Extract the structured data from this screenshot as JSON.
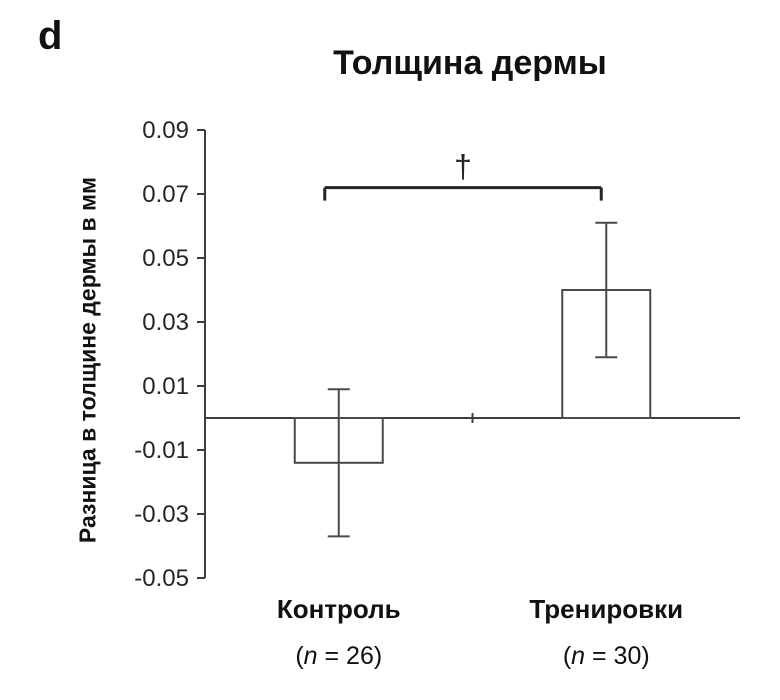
{
  "panel_label": "d",
  "chart_data": {
    "type": "bar",
    "title": "Толщина дермы",
    "ylabel": "Разница в толщине дермы в мм",
    "categories": [
      "Контроль",
      "Тренировки"
    ],
    "category_sublabels": [
      "(n = 26)",
      "(n = 30)"
    ],
    "values": [
      -0.014,
      0.04
    ],
    "error_bars": [
      {
        "low": -0.037,
        "high": 0.009
      },
      {
        "low": 0.019,
        "high": 0.061
      }
    ],
    "ylim": [
      -0.05,
      0.09
    ],
    "yticks": [
      0.09,
      0.07,
      0.05,
      0.03,
      0.01,
      -0.01,
      -0.03,
      -0.05
    ],
    "ytick_decimals": 2,
    "grid": false,
    "legend": "none",
    "significance": {
      "symbol": "†",
      "y": 0.072,
      "from": 0,
      "to": 1
    },
    "colors": {
      "bar_fill": "#ffffff",
      "bar_stroke": "#4a4a4a",
      "axis": "#3d3d3d",
      "text": "#262626"
    }
  }
}
